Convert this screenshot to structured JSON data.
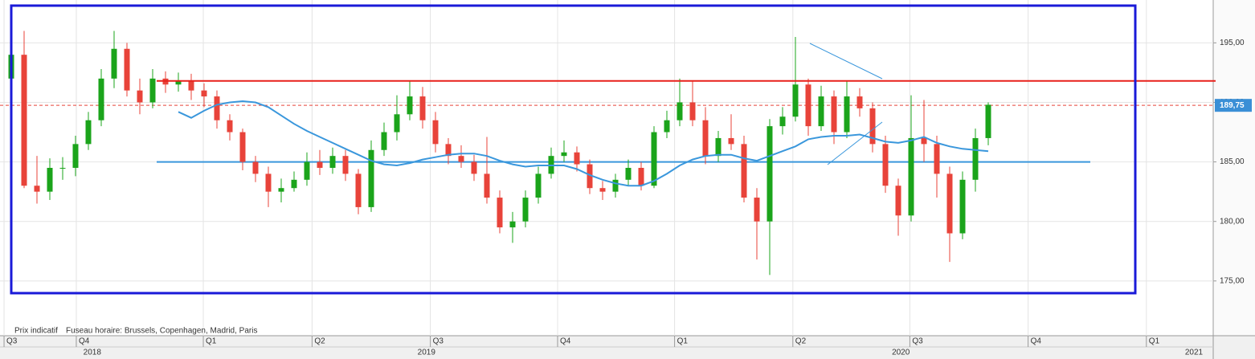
{
  "chart_data": {
    "type": "candlestick",
    "open": [
      192,
      194,
      183,
      182.5,
      184.5,
      184.5,
      186.5,
      188.5,
      192,
      194.5,
      191,
      190,
      192,
      191.5,
      191.8,
      191,
      190.5,
      188.5,
      187.5,
      185,
      184,
      182.5,
      182.8,
      183.5,
      185,
      184.5,
      185.5,
      184,
      181.2,
      186,
      187.5,
      189,
      190.5,
      188.5,
      186.5,
      185.5,
      185,
      184,
      182,
      179.5,
      180,
      182,
      184,
      185.5,
      185.8,
      184.8,
      182.8,
      182.5,
      183.5,
      184.5,
      183,
      187.5,
      188.5,
      190,
      188.5,
      185.5,
      187,
      186.5,
      182,
      180,
      188,
      188.8,
      191.5,
      188,
      190.5,
      187.5,
      190.5,
      189.5,
      186.5,
      183,
      180.5,
      187,
      186.5,
      184,
      179,
      183.5,
      187
    ],
    "high": [
      195.6,
      196,
      185.5,
      185.3,
      185.4,
      187.2,
      189.2,
      192.8,
      196,
      195,
      192,
      192.8,
      192.6,
      192.5,
      192.4,
      191.6,
      191,
      189,
      187.8,
      185.5,
      184.6,
      183.6,
      184.2,
      185.8,
      186,
      186.2,
      186,
      184.4,
      186.8,
      188.3,
      190.6,
      191.8,
      191.3,
      189.2,
      187,
      186.4,
      185.6,
      187.1,
      182.6,
      180.8,
      182.6,
      184.6,
      186.2,
      186.8,
      186.3,
      185.2,
      183.4,
      184,
      185.2,
      185,
      188,
      189.3,
      192,
      191.8,
      189.6,
      187.6,
      189,
      187.2,
      182.8,
      188.6,
      189.6,
      195.5,
      192,
      191.4,
      191,
      191.8,
      191.2,
      190,
      187.2,
      183.6,
      190.6,
      190.2,
      187.2,
      184.6,
      184.2,
      187.8,
      190
    ],
    "low": [
      191.5,
      182.8,
      181.5,
      181.8,
      183.5,
      183.8,
      186,
      188,
      191.2,
      190.5,
      189,
      189.5,
      190.8,
      190.9,
      190.2,
      189.6,
      187.8,
      186.8,
      184.3,
      183.3,
      181.2,
      181.6,
      182.5,
      183,
      183.9,
      184,
      183.4,
      180.6,
      180.8,
      185.5,
      186.8,
      188.5,
      187.8,
      185.8,
      184.8,
      184.5,
      183.4,
      181.5,
      179,
      178.2,
      179.5,
      181.5,
      183.6,
      185,
      184.2,
      182.3,
      181.8,
      182,
      183,
      182.6,
      182.8,
      187,
      188,
      188,
      184.8,
      185,
      186,
      181.6,
      176.8,
      175.5,
      187.3,
      188.4,
      187.2,
      187.6,
      186.5,
      187,
      188.8,
      185.8,
      182.4,
      178.8,
      180,
      185,
      182,
      176.6,
      178.5,
      182.5,
      186.4
    ],
    "close": [
      194,
      183,
      182.5,
      184.5,
      184.5,
      186.5,
      188.5,
      192,
      194.5,
      191,
      190,
      192,
      191.5,
      191.8,
      191,
      190.5,
      188.5,
      187.5,
      185,
      184,
      182.5,
      182.8,
      183.5,
      185,
      184.5,
      185.5,
      184,
      181.2,
      186,
      187.5,
      189,
      190.5,
      188.5,
      186.5,
      185.5,
      185,
      184,
      182,
      179.5,
      180,
      182,
      184,
      185.5,
      185.8,
      184.8,
      182.8,
      182.5,
      183.5,
      184.5,
      183,
      187.5,
      188.5,
      190,
      188.5,
      185.5,
      187,
      186.5,
      182,
      180,
      188,
      188.8,
      191.5,
      188,
      190.5,
      187.5,
      190.5,
      189.5,
      186.5,
      183,
      180.5,
      187,
      186.5,
      184,
      179,
      183.5,
      187,
      189.8
    ],
    "up_color": "#1ba41b",
    "down_color": "#e8433a",
    "ma": {
      "color": "#3a97dc",
      "values": [
        null,
        null,
        null,
        null,
        null,
        null,
        null,
        null,
        null,
        null,
        null,
        null,
        null,
        189.2,
        188.7,
        189.3,
        189.8,
        190,
        190.1,
        190,
        189.6,
        188.9,
        188.2,
        187.6,
        187.1,
        186.6,
        186.1,
        185.6,
        185.1,
        184.8,
        184.7,
        184.9,
        185.2,
        185.4,
        185.6,
        185.7,
        185.7,
        185.5,
        185.1,
        184.8,
        184.6,
        184.7,
        184.7,
        184.7,
        184.4,
        183.9,
        183.5,
        183.2,
        183,
        183,
        183.4,
        184,
        184.7,
        185.2,
        185.5,
        185.6,
        185.6,
        185.3,
        185.1,
        185.5,
        185.9,
        186.3,
        186.9,
        187.1,
        187.2,
        187.2,
        187.3,
        187,
        186.7,
        186.6,
        186.8,
        187.1,
        186.6,
        186.3,
        186.1,
        186,
        185.9
      ]
    },
    "resistance": 191.8,
    "support": 185,
    "last_price": {
      "value": 189.75,
      "label": "189,75"
    },
    "ylim": [
      170.4,
      198.6
    ],
    "yticks": [
      {
        "value": 175,
        "label": "175,00"
      },
      {
        "value": 180,
        "label": "180,00"
      },
      {
        "value": 185,
        "label": "185,00"
      },
      {
        "value": 190,
        "label": "190,00"
      },
      {
        "value": 195,
        "label": "195,00"
      }
    ],
    "xlim": [
      -0.875,
      93.5
    ],
    "xticks": [
      {
        "value": -0.56,
        "label": "Q3"
      },
      {
        "value": 5.06,
        "label": "Q4"
      },
      {
        "value": 14.94,
        "label": "Q1"
      },
      {
        "value": 23.4,
        "label": "Q2"
      },
      {
        "value": 32.6,
        "label": "Q3"
      },
      {
        "value": 42.5,
        "label": "Q4"
      },
      {
        "value": 51.6,
        "label": "Q1"
      },
      {
        "value": 60.8,
        "label": "Q2"
      },
      {
        "value": 69.9,
        "label": "Q3"
      },
      {
        "value": 79.1,
        "label": "Q4"
      },
      {
        "value": 88.3,
        "label": "Q1"
      }
    ],
    "years": [
      {
        "value": 6.3,
        "label": "2018"
      },
      {
        "value": 32.3,
        "label": "2019"
      },
      {
        "value": 69.2,
        "label": "2020"
      },
      {
        "value": 92,
        "label": "2021"
      }
    ],
    "notes": [
      "Prix indicatif",
      "Fuseau horaire: Brussels, Copenhagen, Madrid, Paris"
    ],
    "grid": true
  }
}
